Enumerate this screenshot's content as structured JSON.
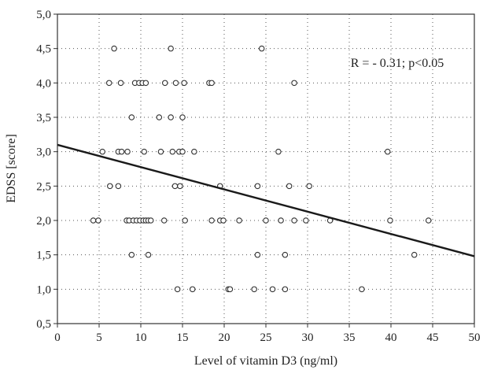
{
  "chart_data": {
    "type": "scatter",
    "title": "",
    "xlabel": "Level of vitamin D3 (ng/ml)",
    "ylabel": "EDSS [score]",
    "xlim": [
      0,
      50
    ],
    "ylim": [
      0.5,
      5.0
    ],
    "x_ticks": [
      "0",
      "5",
      "10",
      "15",
      "20",
      "25",
      "30",
      "35",
      "40",
      "45",
      "50"
    ],
    "y_ticks": [
      "0,5",
      "1,0",
      "1,5",
      "2,0",
      "2,5",
      "3,0",
      "3,5",
      "4,0",
      "4,5",
      "5,0"
    ],
    "grid": true,
    "annotation": "R = - 0.31; p<0.05",
    "regression_line": {
      "x": [
        0,
        50
      ],
      "y": [
        3.1,
        1.48
      ]
    },
    "points": [
      {
        "x": 6.8,
        "y": 4.5
      },
      {
        "x": 13.6,
        "y": 4.5
      },
      {
        "x": 24.5,
        "y": 4.5
      },
      {
        "x": 6.2,
        "y": 4.0
      },
      {
        "x": 7.6,
        "y": 4.0
      },
      {
        "x": 9.3,
        "y": 4.0
      },
      {
        "x": 9.8,
        "y": 4.0
      },
      {
        "x": 10.2,
        "y": 4.0
      },
      {
        "x": 10.6,
        "y": 4.0
      },
      {
        "x": 12.9,
        "y": 4.0
      },
      {
        "x": 14.2,
        "y": 4.0
      },
      {
        "x": 15.2,
        "y": 4.0
      },
      {
        "x": 18.2,
        "y": 4.0
      },
      {
        "x": 18.5,
        "y": 4.0
      },
      {
        "x": 28.4,
        "y": 4.0
      },
      {
        "x": 8.9,
        "y": 3.5
      },
      {
        "x": 12.2,
        "y": 3.5
      },
      {
        "x": 13.6,
        "y": 3.5
      },
      {
        "x": 15.0,
        "y": 3.5
      },
      {
        "x": 5.4,
        "y": 3.0
      },
      {
        "x": 7.3,
        "y": 3.0
      },
      {
        "x": 7.7,
        "y": 3.0
      },
      {
        "x": 8.4,
        "y": 3.0
      },
      {
        "x": 10.4,
        "y": 3.0
      },
      {
        "x": 12.4,
        "y": 3.0
      },
      {
        "x": 13.8,
        "y": 3.0
      },
      {
        "x": 14.6,
        "y": 3.0
      },
      {
        "x": 15.0,
        "y": 3.0
      },
      {
        "x": 16.4,
        "y": 3.0
      },
      {
        "x": 26.5,
        "y": 3.0
      },
      {
        "x": 39.6,
        "y": 3.0
      },
      {
        "x": 6.3,
        "y": 2.5
      },
      {
        "x": 7.3,
        "y": 2.5
      },
      {
        "x": 14.1,
        "y": 2.5
      },
      {
        "x": 14.7,
        "y": 2.5
      },
      {
        "x": 19.5,
        "y": 2.5
      },
      {
        "x": 24.0,
        "y": 2.5
      },
      {
        "x": 27.8,
        "y": 2.5
      },
      {
        "x": 30.2,
        "y": 2.5
      },
      {
        "x": 4.3,
        "y": 2.0
      },
      {
        "x": 4.9,
        "y": 2.0
      },
      {
        "x": 8.3,
        "y": 2.0
      },
      {
        "x": 8.6,
        "y": 2.0
      },
      {
        "x": 9.1,
        "y": 2.0
      },
      {
        "x": 9.5,
        "y": 2.0
      },
      {
        "x": 9.9,
        "y": 2.0
      },
      {
        "x": 10.3,
        "y": 2.0
      },
      {
        "x": 10.6,
        "y": 2.0
      },
      {
        "x": 10.9,
        "y": 2.0
      },
      {
        "x": 11.2,
        "y": 2.0
      },
      {
        "x": 12.8,
        "y": 2.0
      },
      {
        "x": 15.3,
        "y": 2.0
      },
      {
        "x": 18.5,
        "y": 2.0
      },
      {
        "x": 19.5,
        "y": 2.0
      },
      {
        "x": 19.9,
        "y": 2.0
      },
      {
        "x": 21.8,
        "y": 2.0
      },
      {
        "x": 25.0,
        "y": 2.0
      },
      {
        "x": 26.8,
        "y": 2.0
      },
      {
        "x": 28.4,
        "y": 2.0
      },
      {
        "x": 29.8,
        "y": 2.0
      },
      {
        "x": 32.7,
        "y": 2.0
      },
      {
        "x": 39.9,
        "y": 2.0
      },
      {
        "x": 44.5,
        "y": 2.0
      },
      {
        "x": 8.9,
        "y": 1.5
      },
      {
        "x": 10.9,
        "y": 1.5
      },
      {
        "x": 24.0,
        "y": 1.5
      },
      {
        "x": 27.3,
        "y": 1.5
      },
      {
        "x": 42.8,
        "y": 1.5
      },
      {
        "x": 14.4,
        "y": 1.0
      },
      {
        "x": 16.2,
        "y": 1.0
      },
      {
        "x": 20.5,
        "y": 1.0
      },
      {
        "x": 20.7,
        "y": 1.0
      },
      {
        "x": 23.6,
        "y": 1.0
      },
      {
        "x": 25.8,
        "y": 1.0
      },
      {
        "x": 27.3,
        "y": 1.0
      },
      {
        "x": 36.5,
        "y": 1.0
      }
    ]
  }
}
